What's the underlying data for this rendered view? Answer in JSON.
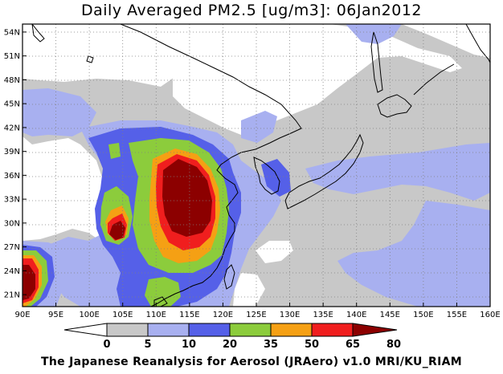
{
  "title": "Daily Averaged PM2.5 [ug/m3]: 06Jan2012",
  "credit": "The Japanese Reanalysis for Aerosol (JRAero) v1.0 MRI/KU_RIAM",
  "map": {
    "lon_range": [
      90,
      160
    ],
    "lat_range": [
      19.5,
      55
    ],
    "lon_ticks": [
      "90E",
      "95E",
      "100E",
      "105E",
      "110E",
      "115E",
      "120E",
      "125E",
      "130E",
      "135E",
      "140E",
      "145E",
      "150E",
      "155E",
      "160E"
    ],
    "lat_ticks": [
      "54N",
      "51N",
      "48N",
      "45N",
      "42N",
      "39N",
      "36N",
      "33N",
      "30N",
      "27N",
      "24N",
      "21N"
    ]
  },
  "colorbar": {
    "levels": [
      "0",
      "5",
      "10",
      "20",
      "35",
      "50",
      "65",
      "80"
    ],
    "colors": [
      "#ffffff",
      "#c8c8c8",
      "#a8b0f0",
      "#5560e8",
      "#8ccc3c",
      "#f5a014",
      "#f01e1e",
      "#8c0000"
    ]
  }
}
